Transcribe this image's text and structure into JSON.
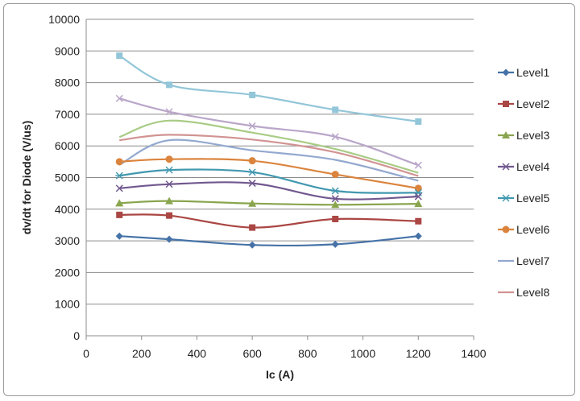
{
  "chart_data": {
    "type": "line",
    "title": "",
    "xlabel": "Ic (A)",
    "ylabel": "dv/dt for Diode (V/us)",
    "xlim": [
      0,
      1400
    ],
    "ylim": [
      0,
      10000
    ],
    "x_ticks": [
      0,
      200,
      400,
      600,
      800,
      1000,
      1200,
      1400
    ],
    "y_ticks": [
      0,
      1000,
      2000,
      3000,
      4000,
      5000,
      6000,
      7000,
      8000,
      9000,
      10000
    ],
    "grid": "horizontal",
    "legend_position": "right",
    "x": [
      120,
      300,
      600,
      900,
      1200
    ],
    "series": [
      {
        "name": "Level1",
        "color": "#4572A7",
        "marker": "diamond",
        "values": [
          3150,
          3050,
          2870,
          2890,
          3150
        ]
      },
      {
        "name": "Level2",
        "color": "#AA4643",
        "marker": "square",
        "values": [
          3820,
          3800,
          3420,
          3690,
          3620
        ]
      },
      {
        "name": "Level3",
        "color": "#89A54E",
        "marker": "triangle",
        "values": [
          4190,
          4260,
          4180,
          4140,
          4170
        ]
      },
      {
        "name": "Level4",
        "color": "#71588F",
        "marker": "x",
        "values": [
          4660,
          4790,
          4820,
          4330,
          4400
        ]
      },
      {
        "name": "Level5",
        "color": "#4198AF",
        "marker": "star",
        "values": [
          5060,
          5240,
          5170,
          4580,
          4520
        ]
      },
      {
        "name": "Level6",
        "color": "#DB843D",
        "marker": "circle",
        "values": [
          5500,
          5580,
          5530,
          5100,
          4660
        ]
      },
      {
        "name": "Level7",
        "color": "#93A9CF",
        "marker": "none",
        "values": [
          5400,
          6180,
          5860,
          5560,
          4900
        ]
      },
      {
        "name": "Level8",
        "color": "#D19392",
        "marker": "none",
        "values": [
          6180,
          6350,
          6200,
          5800,
          5050
        ]
      },
      {
        "name": "",
        "color": "#B9A6C9",
        "marker": "x",
        "values": [
          7500,
          7080,
          6630,
          6290,
          5390
        ]
      },
      {
        "name": "",
        "color": "#A9CC85",
        "marker": "none",
        "values": [
          6280,
          6800,
          6420,
          5900,
          5150
        ]
      },
      {
        "name": "",
        "color": "#92C6D8",
        "marker": "square",
        "values": [
          8850,
          7930,
          7610,
          7140,
          6770
        ]
      }
    ]
  }
}
